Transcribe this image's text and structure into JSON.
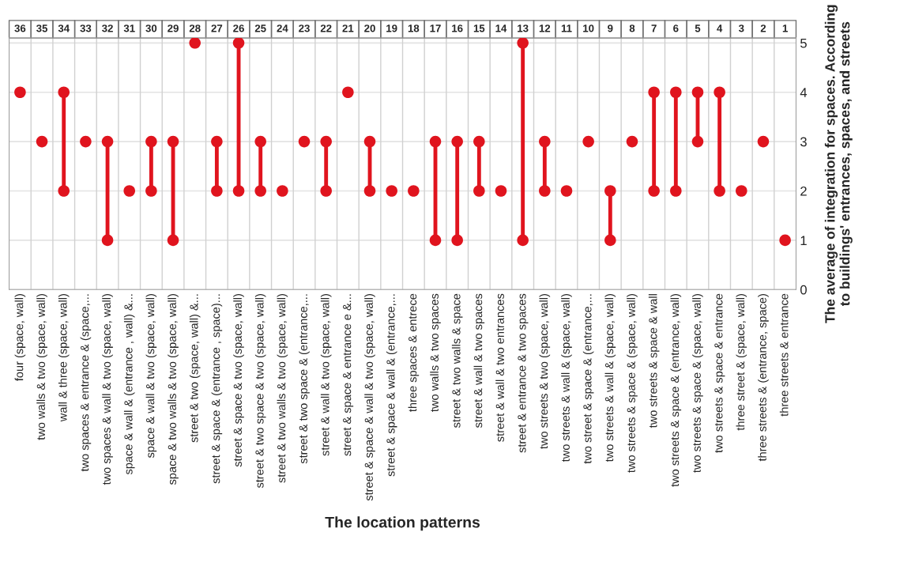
{
  "chart_data": {
    "type": "scatter",
    "xlabel": "The location patterns",
    "ylabel": "The average of integration for spaces. According\nto buildings' entrances, spaces, and streets",
    "categories": [
      "four (space, wall)",
      "two walls & two (space, wall)",
      "wall & three (space, wall)",
      "two spaces & entrance & (space,...",
      "two spaces & wall & two (space, wall)",
      "space & wall & (entrance , wall) &...",
      "space & wall & two (space, wall)",
      "space & two walls & two (space, wall)",
      "street & two (space, wall) &...",
      "street & space & (entrance , space)...",
      "street & space & two (space, wall)",
      "street & two space & two (space, wall)",
      "street & two walls & two (space, wall)",
      "street & two space & (entrance,...",
      "street & wall & two (space, wall)",
      "street & space & entrance e &...",
      "street & space & wall & two (space, wall)",
      "street & space & wall & (entrance,...",
      "three spaces & entrece",
      "two walls & two spaces",
      "street & two walls & space",
      "street & wall & two spaces",
      "street & wall & two entrances",
      "street & entrance & two spaces",
      "two streets & two (space, wall)",
      "two streets & wall & (space, wall)",
      "two street & space & (entrance,...",
      "two streets & wall & (space, wall)",
      "two streets & space & (space, wall)",
      "two streets & space & wall",
      "two streets & space & (entrance, wall)",
      "two streets & space & (space, wall)",
      "two streets & space & entrance",
      "three street & (space, wall)",
      "three streets & (entrance, space)",
      "three streets & entrance"
    ],
    "series": [
      {
        "color": "#e0141e",
        "values": [
          4,
          3,
          2,
          3,
          1,
          2,
          2,
          1,
          5,
          2,
          2,
          2,
          2,
          3,
          2,
          4,
          2,
          2,
          2,
          1,
          1,
          2,
          2,
          1,
          2,
          2,
          3,
          1,
          3,
          2,
          2,
          3,
          2,
          2,
          3,
          1
        ]
      },
      {
        "color": "#e0141e",
        "values": [
          null,
          null,
          4,
          null,
          3,
          null,
          3,
          3,
          null,
          3,
          5,
          3,
          null,
          null,
          3,
          null,
          3,
          null,
          null,
          3,
          3,
          3,
          null,
          5,
          3,
          null,
          null,
          2,
          null,
          4,
          4,
          4,
          4,
          null,
          null,
          null
        ]
      }
    ],
    "annotations": [
      "36",
      "35",
      "34",
      "33",
      "32",
      "31",
      "30",
      "29",
      "28",
      "27",
      "26",
      "25",
      "24",
      "23",
      "22",
      "21",
      "20",
      "19",
      "18",
      "17",
      "16",
      "15",
      "14",
      "13",
      "12",
      "11",
      "10",
      "9",
      "8",
      "7",
      "6",
      "5",
      "4",
      "3",
      "2",
      "1"
    ],
    "ylim": [
      0,
      5.1
    ],
    "yticks": [
      0,
      1,
      2,
      3,
      4,
      5
    ],
    "grid": true,
    "marker": "circle"
  }
}
